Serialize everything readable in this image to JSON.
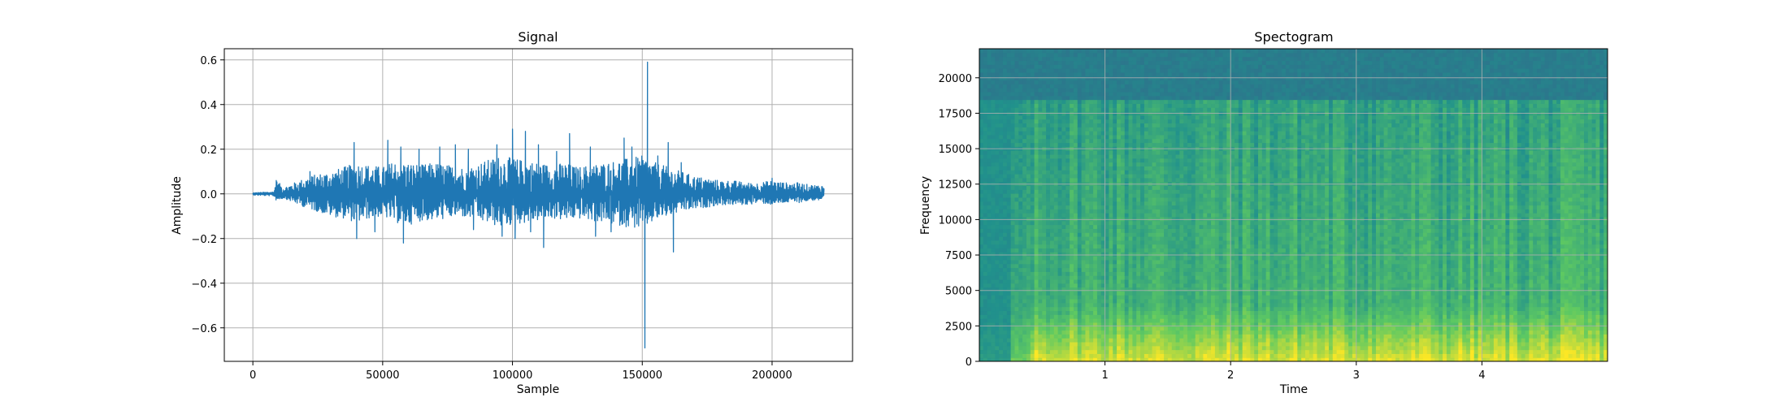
{
  "colors": {
    "line": "#1f77b4",
    "grid": "#b0b0b0",
    "axes": "#000000",
    "background": "#ffffff",
    "colormap": [
      "#440154",
      "#3b528b",
      "#21918c",
      "#5ec962",
      "#fde725"
    ]
  },
  "chart_data": [
    {
      "type": "line",
      "title": "Signal",
      "xlabel": "Sample",
      "ylabel": "Amplitude",
      "xlim": [
        -11000,
        231000
      ],
      "ylim": [
        -0.75,
        0.65
      ],
      "xticks": [
        0,
        50000,
        100000,
        150000,
        200000
      ],
      "xtick_labels": [
        "0",
        "50000",
        "100000",
        "150000",
        "200000"
      ],
      "yticks": [
        0.6,
        0.4,
        0.2,
        0.0,
        -0.2,
        -0.4,
        -0.6
      ],
      "ytick_labels": [
        "0.6",
        "0.4",
        "0.2",
        "0.0",
        "−0.2",
        "−0.4",
        "−0.6"
      ],
      "grid": true,
      "series": [
        {
          "color": "#1f77b4",
          "envelope": {
            "x": [
              0,
              8000,
              9000,
              12000,
              16000,
              20000,
              25000,
              30000,
              35000,
              40000,
              45000,
              50000,
              55000,
              60000,
              65000,
              70000,
              75000,
              80000,
              85000,
              90000,
              95000,
              100000,
              105000,
              110000,
              115000,
              120000,
              125000,
              130000,
              135000,
              140000,
              145000,
              150000,
              155000,
              160000,
              165000,
              170000,
              175000,
              180000,
              185000,
              190000,
              195000,
              200000,
              205000,
              210000,
              215000,
              220000
            ],
            "upper": [
              0.005,
              0.01,
              0.06,
              0.03,
              0.05,
              0.07,
              0.09,
              0.1,
              0.12,
              0.14,
              0.13,
              0.12,
              0.15,
              0.14,
              0.13,
              0.14,
              0.13,
              0.12,
              0.13,
              0.15,
              0.17,
              0.16,
              0.15,
              0.14,
              0.13,
              0.14,
              0.12,
              0.13,
              0.14,
              0.15,
              0.16,
              0.17,
              0.14,
              0.12,
              0.1,
              0.08,
              0.07,
              0.06,
              0.06,
              0.05,
              0.05,
              0.06,
              0.05,
              0.05,
              0.04,
              0.04
            ],
            "lower": [
              -0.005,
              -0.01,
              -0.03,
              -0.02,
              -0.04,
              -0.06,
              -0.08,
              -0.1,
              -0.11,
              -0.13,
              -0.11,
              -0.1,
              -0.13,
              -0.14,
              -0.12,
              -0.12,
              -0.11,
              -0.1,
              -0.12,
              -0.13,
              -0.15,
              -0.14,
              -0.13,
              -0.12,
              -0.11,
              -0.12,
              -0.11,
              -0.12,
              -0.13,
              -0.14,
              -0.15,
              -0.16,
              -0.12,
              -0.1,
              -0.08,
              -0.07,
              -0.06,
              -0.05,
              -0.05,
              -0.05,
              -0.04,
              -0.05,
              -0.04,
              -0.04,
              -0.03,
              -0.03
            ]
          },
          "peaks": [
            [
              9000,
              0.06
            ],
            [
              22000,
              0.1
            ],
            [
              39000,
              0.23
            ],
            [
              40000,
              -0.2
            ],
            [
              47000,
              -0.17
            ],
            [
              52000,
              0.24
            ],
            [
              57000,
              0.21
            ],
            [
              58000,
              -0.22
            ],
            [
              64000,
              0.2
            ],
            [
              72000,
              0.21
            ],
            [
              78000,
              0.22
            ],
            [
              83000,
              0.2
            ],
            [
              85000,
              -0.16
            ],
            [
              94000,
              0.22
            ],
            [
              96000,
              -0.19
            ],
            [
              100000,
              0.29
            ],
            [
              101000,
              -0.2
            ],
            [
              105000,
              0.28
            ],
            [
              107000,
              -0.17
            ],
            [
              110000,
              0.22
            ],
            [
              112000,
              -0.24
            ],
            [
              117000,
              0.19
            ],
            [
              122000,
              0.27
            ],
            [
              130000,
              0.21
            ],
            [
              132000,
              -0.19
            ],
            [
              138000,
              -0.17
            ],
            [
              143000,
              0.25
            ],
            [
              146000,
              0.21
            ],
            [
              151000,
              -0.69
            ],
            [
              152000,
              0.59
            ],
            [
              156000,
              0.17
            ],
            [
              160000,
              0.23
            ],
            [
              162000,
              -0.26
            ],
            [
              165000,
              0.14
            ],
            [
              200000,
              0.07
            ]
          ]
        }
      ]
    },
    {
      "type": "heatmap",
      "title": "Spectogram",
      "xlabel": "Time",
      "ylabel": "Frequency",
      "xlim": [
        0,
        5
      ],
      "ylim": [
        0,
        22050
      ],
      "xticks": [
        1,
        2,
        3,
        4
      ],
      "xtick_labels": [
        "1",
        "2",
        "3",
        "4"
      ],
      "yticks": [
        0,
        2500,
        5000,
        7500,
        10000,
        12500,
        15000,
        17500,
        20000
      ],
      "ytick_labels": [
        "0",
        "2500",
        "5000",
        "7500",
        "10000",
        "12500",
        "15000",
        "17500",
        "20000"
      ],
      "grid": true,
      "colormap": "viridis",
      "cutoff_frequency": 18500,
      "onset_time": 0.4
    }
  ]
}
